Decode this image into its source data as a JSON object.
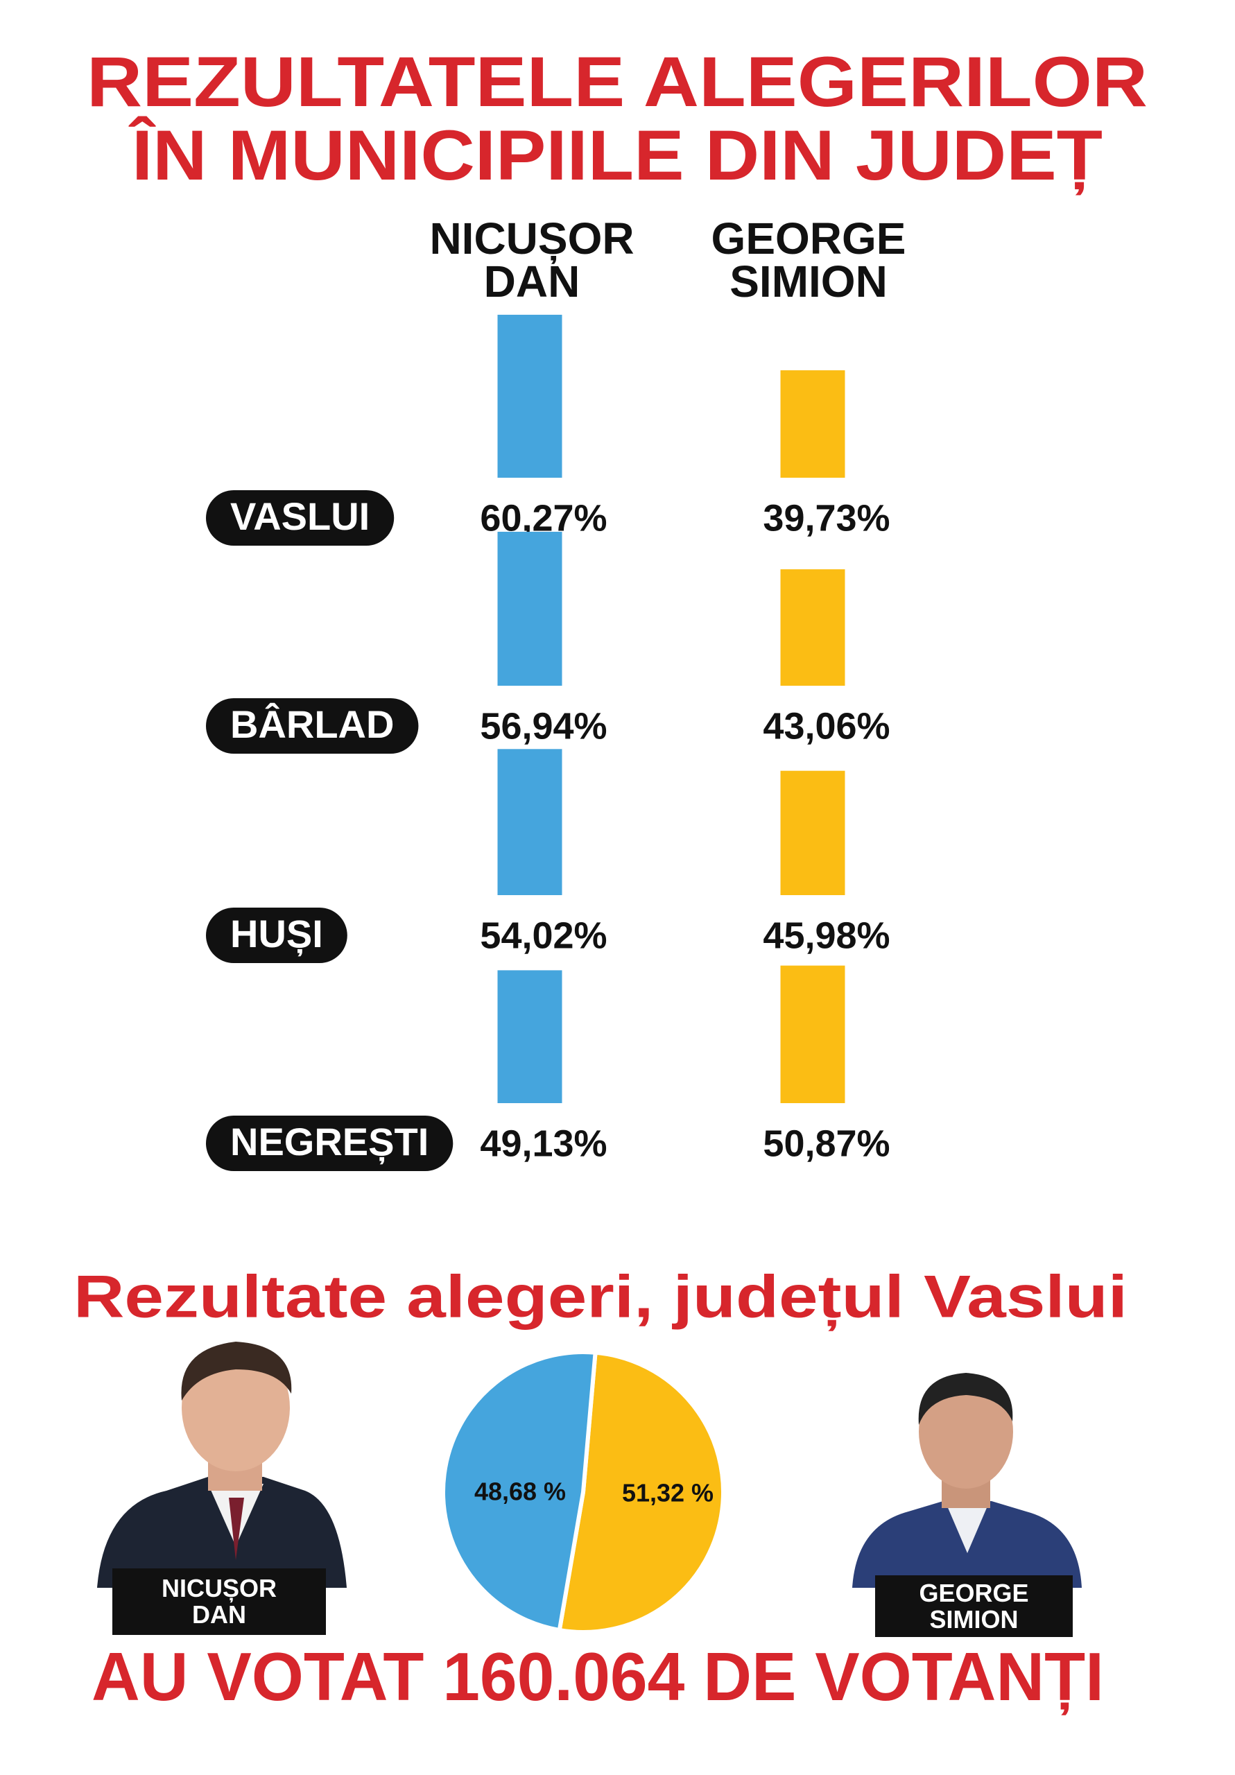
{
  "chart_data": [
    {
      "type": "bar",
      "title": [
        "REZULTATELE  ALEGERILOR",
        "ÎN MUNICIPIILE DIN JUDEȚ"
      ],
      "categories": [
        "VASLUI",
        "BÂRLAD",
        "HUȘI",
        "NEGREȘTI"
      ],
      "series": [
        {
          "name": "NICUȘOR DAN",
          "color": "#45a5dd",
          "values": [
            60.27,
            56.94,
            54.02,
            49.13
          ],
          "value_labels": [
            "60,27%",
            "56,94%",
            "54,02%",
            "49,13%"
          ]
        },
        {
          "name": "GEORGE SIMION",
          "color": "#fbbd14",
          "values": [
            39.73,
            43.06,
            45.98,
            50.87
          ],
          "value_labels": [
            "39,73%",
            "43,06%",
            "45,98%",
            "50,87%"
          ]
        }
      ]
    },
    {
      "type": "pie",
      "title": "Rezultate alegeri, județul Vaslui",
      "categories": [
        "NICUȘOR DAN",
        "GEORGE SIMION"
      ],
      "values": [
        48.68,
        51.32
      ],
      "value_labels": [
        "48,68 %",
        "51,32 %"
      ],
      "colors": [
        "#45a5dd",
        "#fbbd14"
      ]
    }
  ],
  "footer": "AU  VOTAT 160.064 DE VOTANȚI"
}
